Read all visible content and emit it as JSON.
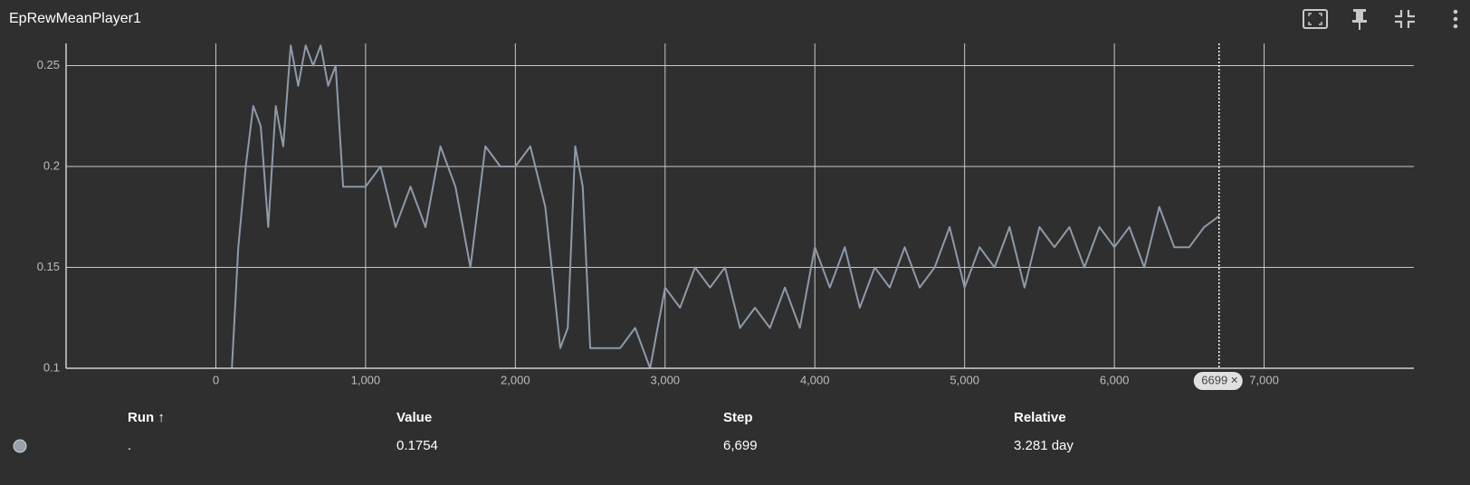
{
  "header": {
    "title": "EpRewMeanPlayer1"
  },
  "chart_data": {
    "type": "line",
    "color": "#8e9aaa",
    "x": [
      100,
      150,
      200,
      250,
      300,
      350,
      400,
      450,
      500,
      550,
      600,
      650,
      700,
      750,
      800,
      850,
      900,
      1000,
      1100,
      1200,
      1300,
      1400,
      1500,
      1600,
      1700,
      1800,
      1900,
      2000,
      2100,
      2200,
      2300,
      2350,
      2400,
      2450,
      2500,
      2600,
      2700,
      2800,
      2900,
      3000,
      3100,
      3200,
      3300,
      3400,
      3500,
      3600,
      3700,
      3800,
      3900,
      4000,
      4100,
      4200,
      4300,
      4400,
      4500,
      4600,
      4700,
      4800,
      4900,
      5000,
      5100,
      5200,
      5300,
      5400,
      5500,
      5600,
      5700,
      5800,
      5900,
      6000,
      6100,
      6200,
      6300,
      6400,
      6500,
      6600,
      6699
    ],
    "values": [
      0.09,
      0.16,
      0.2,
      0.23,
      0.22,
      0.17,
      0.23,
      0.21,
      0.26,
      0.24,
      0.26,
      0.25,
      0.26,
      0.24,
      0.25,
      0.19,
      0.19,
      0.19,
      0.2,
      0.17,
      0.19,
      0.17,
      0.21,
      0.19,
      0.15,
      0.21,
      0.2,
      0.2,
      0.21,
      0.18,
      0.11,
      0.12,
      0.21,
      0.19,
      0.11,
      0.11,
      0.11,
      0.12,
      0.1,
      0.14,
      0.13,
      0.15,
      0.14,
      0.15,
      0.12,
      0.13,
      0.12,
      0.14,
      0.12,
      0.16,
      0.14,
      0.16,
      0.13,
      0.15,
      0.14,
      0.16,
      0.14,
      0.15,
      0.17,
      0.14,
      0.16,
      0.15,
      0.17,
      0.14,
      0.17,
      0.16,
      0.17,
      0.15,
      0.17,
      0.16,
      0.17,
      0.15,
      0.18,
      0.16,
      0.16,
      0.17,
      0.1754
    ],
    "xlim": [
      -1000,
      8000
    ],
    "xticks": [
      {
        "value": 0,
        "label": "0"
      },
      {
        "value": 1000,
        "label": "1,000"
      },
      {
        "value": 2000,
        "label": "2,000"
      },
      {
        "value": 3000,
        "label": "3,000"
      },
      {
        "value": 4000,
        "label": "4,000"
      },
      {
        "value": 5000,
        "label": "5,000"
      },
      {
        "value": 6000,
        "label": "6,000"
      },
      {
        "value": 7000,
        "label": "7,000"
      }
    ],
    "ylim": [
      0.1,
      0.261
    ],
    "yticks": [
      0.1,
      0.15,
      0.2,
      0.25
    ],
    "grid": true,
    "cursor_step": 6699,
    "cursor_close": "×"
  },
  "table": {
    "headers": [
      "Run ↑",
      "Value",
      "Step",
      "Relative"
    ],
    "rows": [
      [
        ".",
        "0.1754",
        "6,699",
        "3.281 day"
      ]
    ]
  }
}
